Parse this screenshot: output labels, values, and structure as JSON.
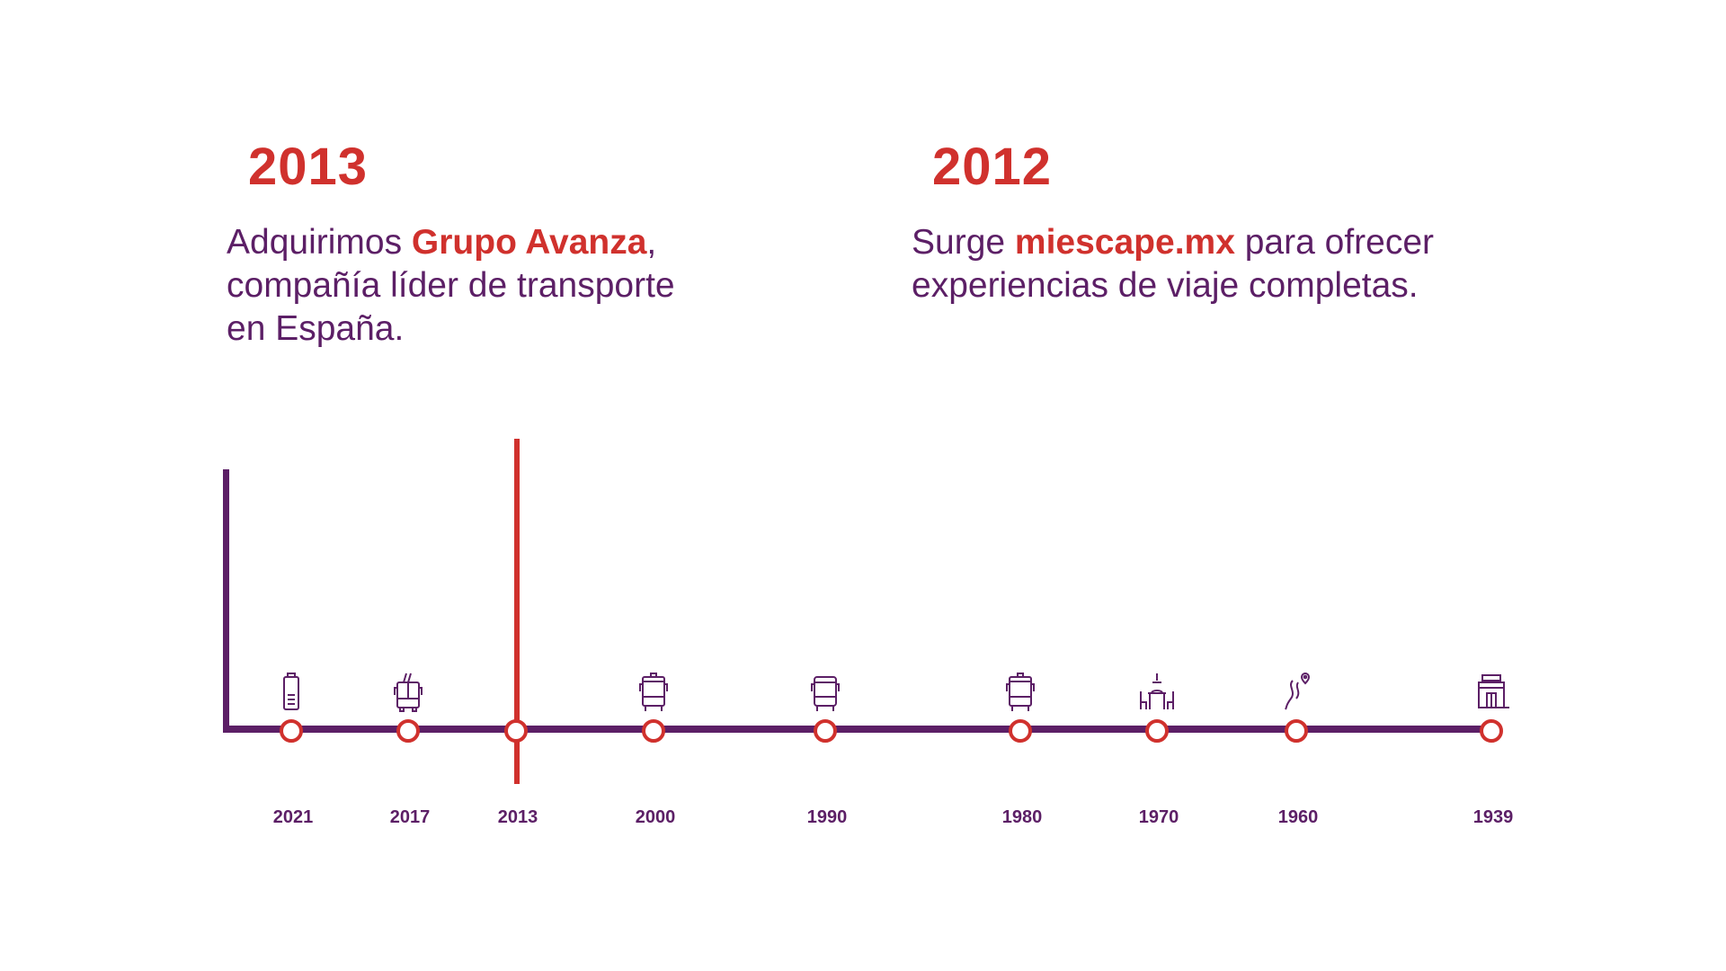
{
  "highlight_left": {
    "year": "2013",
    "text_before": "Adquirimos ",
    "highlight": "Grupo Avanza",
    "text_after": ", compañía líder de transporte en España."
  },
  "highlight_right": {
    "year": "2012",
    "text_before": "Surge ",
    "highlight": "miescape.mx",
    "text_after": " para ofrecer experiencias de viaje completas."
  },
  "colors": {
    "purple": "#5c1f66",
    "red": "#d0312d"
  },
  "timeline": [
    {
      "year": "2021",
      "icon": "battery-icon"
    },
    {
      "year": "2017",
      "icon": "trolleybus-icon"
    },
    {
      "year": "2013",
      "icon": ""
    },
    {
      "year": "2000",
      "icon": "bus-icon"
    },
    {
      "year": "1990",
      "icon": "coach-icon"
    },
    {
      "year": "1980",
      "icon": "bus-icon"
    },
    {
      "year": "1970",
      "icon": "dining-icon"
    },
    {
      "year": "1960",
      "icon": "route-pin-icon"
    },
    {
      "year": "1939",
      "icon": "building-icon"
    }
  ],
  "selected_year": "2013"
}
